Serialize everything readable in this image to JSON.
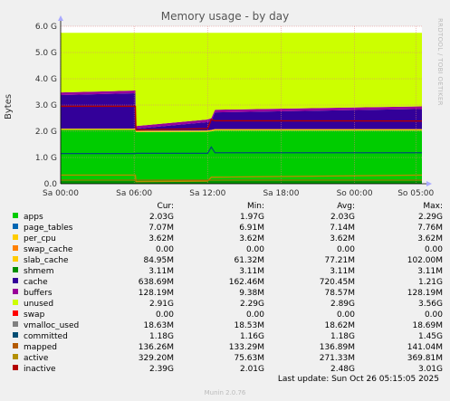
{
  "chart_data": {
    "type": "area",
    "title": "Memory usage - by day",
    "ylabel": "Bytes",
    "ylim": [
      0,
      6.0
    ],
    "yticks": [
      "0.0",
      "1.0 G",
      "2.0 G",
      "3.0 G",
      "4.0 G",
      "5.0 G",
      "6.0 G"
    ],
    "xticks": [
      "Sa 00:00",
      "Sa 06:00",
      "Sa 12:00",
      "Sa 18:00",
      "So 00:00",
      "So 05:00"
    ],
    "grid": true,
    "series": [
      {
        "name": "apps",
        "color": "#00cc00",
        "cur": "2.03G",
        "min": "1.97G",
        "avg": "2.03G",
        "max": "2.29G"
      },
      {
        "name": "page_tables",
        "color": "#0066b3",
        "cur": "7.07M",
        "min": "6.91M",
        "avg": "7.14M",
        "max": "7.76M"
      },
      {
        "name": "per_cpu",
        "color": "#ffcc00",
        "cur": "3.62M",
        "min": "3.62M",
        "avg": "3.62M",
        "max": "3.62M"
      },
      {
        "name": "swap_cache",
        "color": "#ff8000",
        "cur": "0.00",
        "min": "0.00",
        "avg": "0.00",
        "max": "0.00"
      },
      {
        "name": "slab_cache",
        "color": "#ffcc00",
        "cur": "84.95M",
        "min": "61.32M",
        "avg": "77.21M",
        "max": "102.00M"
      },
      {
        "name": "shmem",
        "color": "#008f00",
        "cur": "3.11M",
        "min": "3.11M",
        "avg": "3.11M",
        "max": "3.11M"
      },
      {
        "name": "cache",
        "color": "#330099",
        "cur": "638.69M",
        "min": "162.46M",
        "avg": "720.45M",
        "max": "1.21G"
      },
      {
        "name": "buffers",
        "color": "#990099",
        "cur": "128.19M",
        "min": "9.38M",
        "avg": "78.57M",
        "max": "128.19M"
      },
      {
        "name": "unused",
        "color": "#ccff00",
        "cur": "2.91G",
        "min": "2.29G",
        "avg": "2.89G",
        "max": "3.56G"
      },
      {
        "name": "swap",
        "color": "#ff0000",
        "cur": "0.00",
        "min": "0.00",
        "avg": "0.00",
        "max": "0.00"
      },
      {
        "name": "vmalloc_used",
        "color": "#808080",
        "cur": "18.63M",
        "min": "18.53M",
        "avg": "18.62M",
        "max": "18.69M"
      },
      {
        "name": "committed",
        "color": "#004d73",
        "cur": "1.18G",
        "min": "1.16G",
        "avg": "1.18G",
        "max": "1.45G"
      },
      {
        "name": "mapped",
        "color": "#b35a00",
        "cur": "136.26M",
        "min": "133.29M",
        "avg": "136.89M",
        "max": "141.04M"
      },
      {
        "name": "active",
        "color": "#b38f00",
        "cur": "329.20M",
        "min": "75.63M",
        "avg": "271.33M",
        "max": "369.81M"
      },
      {
        "name": "inactive",
        "color": "#b30000",
        "cur": "2.39G",
        "min": "2.01G",
        "avg": "2.48G",
        "max": "3.01G"
      }
    ],
    "stack_profile": {
      "x_hours": [
        0,
        6.1,
        6.15,
        12.0,
        12.3,
        12.6,
        29.5
      ],
      "apps": [
        2.05,
        2.05,
        1.97,
        1.98,
        2.0,
        2.03,
        2.03
      ],
      "cache_top": [
        3.38,
        3.45,
        2.1,
        2.35,
        2.4,
        2.72,
        2.85
      ],
      "total": [
        5.75,
        5.75,
        5.75,
        5.75,
        5.75,
        5.75,
        5.75
      ],
      "inactive": [
        2.95,
        2.95,
        2.05,
        2.1,
        2.45,
        2.4,
        2.39
      ],
      "committed": [
        1.15,
        1.15,
        1.16,
        1.16,
        1.4,
        1.18,
        1.18
      ],
      "active": [
        0.33,
        0.33,
        0.08,
        0.1,
        0.25,
        0.25,
        0.33
      ]
    }
  },
  "legend_headers": {
    "cur": "Cur:",
    "min": "Min:",
    "avg": "Avg:",
    "max": "Max:"
  },
  "last_update": "Last update:  Sun Oct 26 05:15:05 2025",
  "side_label": "RRDTOOL / TOBI OETIKER",
  "footer": "Munin 2.0.76"
}
